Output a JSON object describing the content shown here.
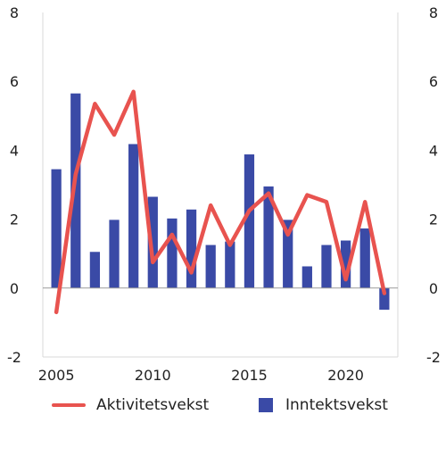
{
  "chart_data": {
    "type": "bar+line",
    "title": "",
    "xlabel": "",
    "ylabel": "",
    "ylim": [
      -2,
      8
    ],
    "y_ticks": [
      "-2",
      "0",
      "2",
      "4",
      "6",
      "8"
    ],
    "x_ticks": [
      "2005",
      "2010",
      "2015",
      "2020"
    ],
    "x_tick_years": [
      2005,
      2010,
      2015,
      2020
    ],
    "years": [
      2005,
      2006,
      2007,
      2008,
      2009,
      2010,
      2011,
      2012,
      2013,
      2014,
      2015,
      2016,
      2017,
      2018,
      2019,
      2020,
      2021,
      2022
    ],
    "series": [
      {
        "name": "Inntektsvekst",
        "type": "bar",
        "color": "#3a4aa6",
        "values": [
          3.45,
          5.65,
          1.05,
          1.98,
          4.18,
          2.65,
          2.02,
          2.28,
          1.25,
          1.35,
          3.88,
          2.95,
          1.98,
          0.63,
          1.25,
          1.38,
          1.73,
          -0.63
        ]
      },
      {
        "name": "Aktivitetsvekst",
        "type": "line",
        "color": "#e8534f",
        "values": [
          -0.7,
          3.3,
          5.35,
          4.45,
          5.7,
          0.75,
          1.55,
          0.45,
          2.4,
          1.25,
          2.25,
          2.75,
          1.55,
          2.7,
          2.5,
          0.25,
          2.5,
          -0.15
        ]
      }
    ],
    "grid": false,
    "dual_y_axis_labels": true,
    "legend_position": "bottom"
  },
  "legend": {
    "line_label": "Aktivitetsvekst",
    "bar_label": "Inntektsvekst"
  }
}
